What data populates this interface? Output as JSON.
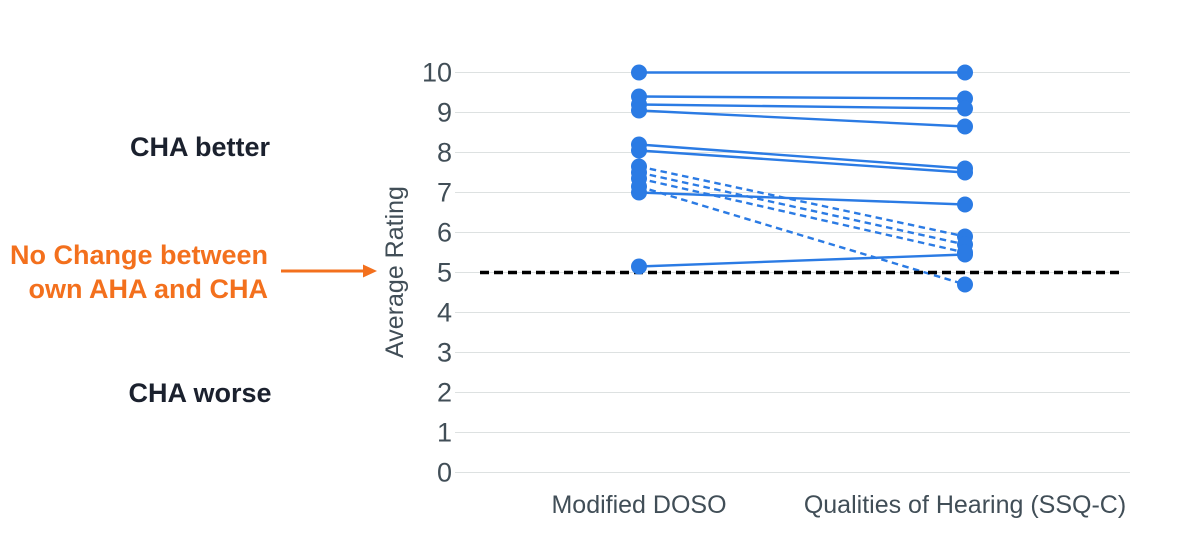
{
  "annotations": {
    "cha_better": "CHA better",
    "no_change_line1": "No Change between",
    "no_change_line2": "own AHA and CHA",
    "cha_worse": "CHA worse"
  },
  "colors": {
    "series_blue": "#2B7BE4",
    "annotation_orange": "#F3701D",
    "axis_text": "#414E57",
    "annotation_dark": "#1B212E",
    "gridline": "#DDE1E1",
    "reference_black": "#000000",
    "background": "#FFFFFF"
  },
  "chart_data": {
    "type": "line",
    "subtype": "paired-slope",
    "title": "",
    "xlabel": "",
    "ylabel": "Average Rating",
    "categories": [
      "Modified DOSO",
      "Qualities of Hearing (SSQ-C)"
    ],
    "ylim": [
      0,
      10
    ],
    "yticks": [
      0,
      1,
      2,
      3,
      4,
      5,
      6,
      7,
      8,
      9,
      10
    ],
    "grid": true,
    "legend": "none",
    "reference_line": {
      "y": 5,
      "style": "dashed"
    },
    "series": [
      {
        "name": "pair-01",
        "style": "solid",
        "values": [
          10.0,
          10.0
        ]
      },
      {
        "name": "pair-02",
        "style": "solid",
        "values": [
          9.4,
          9.35
        ]
      },
      {
        "name": "pair-03",
        "style": "solid",
        "values": [
          9.2,
          9.1
        ]
      },
      {
        "name": "pair-04",
        "style": "solid",
        "values": [
          9.05,
          8.65
        ]
      },
      {
        "name": "pair-05",
        "style": "solid",
        "values": [
          8.2,
          7.6
        ]
      },
      {
        "name": "pair-06",
        "style": "solid",
        "values": [
          8.05,
          7.5
        ]
      },
      {
        "name": "pair-07",
        "style": "solid",
        "values": [
          7.0,
          6.7
        ]
      },
      {
        "name": "pair-08",
        "style": "solid",
        "values": [
          5.15,
          5.45
        ]
      },
      {
        "name": "pair-09",
        "style": "dashed",
        "values": [
          7.65,
          5.9
        ]
      },
      {
        "name": "pair-10",
        "style": "dashed",
        "values": [
          7.5,
          5.7
        ]
      },
      {
        "name": "pair-11",
        "style": "dashed",
        "values": [
          7.35,
          5.5
        ]
      },
      {
        "name": "pair-12",
        "style": "dashed",
        "values": [
          7.15,
          4.7
        ]
      }
    ]
  }
}
